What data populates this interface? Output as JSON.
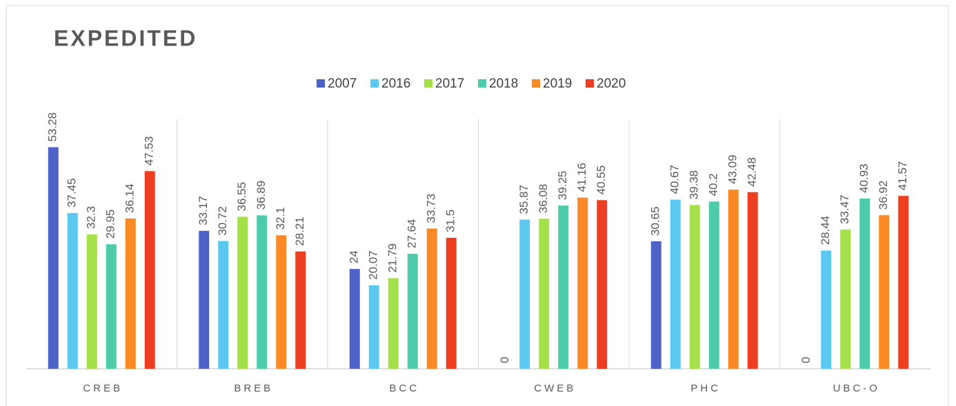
{
  "chart_data": {
    "type": "bar",
    "title": "EXPEDITED",
    "categories": [
      "CREB",
      "BREB",
      "BCC",
      "CWEB",
      "PHC",
      "UBC-O"
    ],
    "series": [
      {
        "name": "2007",
        "color": "#4f62c8",
        "values": [
          53.28,
          33.17,
          24,
          0,
          30.65,
          0
        ]
      },
      {
        "name": "2016",
        "color": "#5bc8f0",
        "values": [
          37.45,
          30.72,
          20.07,
          35.87,
          40.67,
          28.44
        ]
      },
      {
        "name": "2017",
        "color": "#a4e04a",
        "values": [
          32.3,
          36.55,
          21.79,
          36.08,
          39.38,
          33.47
        ]
      },
      {
        "name": "2018",
        "color": "#4ecba8",
        "values": [
          29.95,
          36.89,
          27.64,
          39.25,
          40.2,
          40.93
        ]
      },
      {
        "name": "2019",
        "color": "#fb8a25",
        "values": [
          36.14,
          32.1,
          33.73,
          41.16,
          43.09,
          36.92
        ]
      },
      {
        "name": "2020",
        "color": "#ee3e22",
        "values": [
          47.53,
          28.21,
          31.5,
          40.55,
          42.48,
          41.57
        ]
      }
    ],
    "ylim": [
      0,
      60
    ],
    "legend": "top",
    "data_labels": true
  }
}
